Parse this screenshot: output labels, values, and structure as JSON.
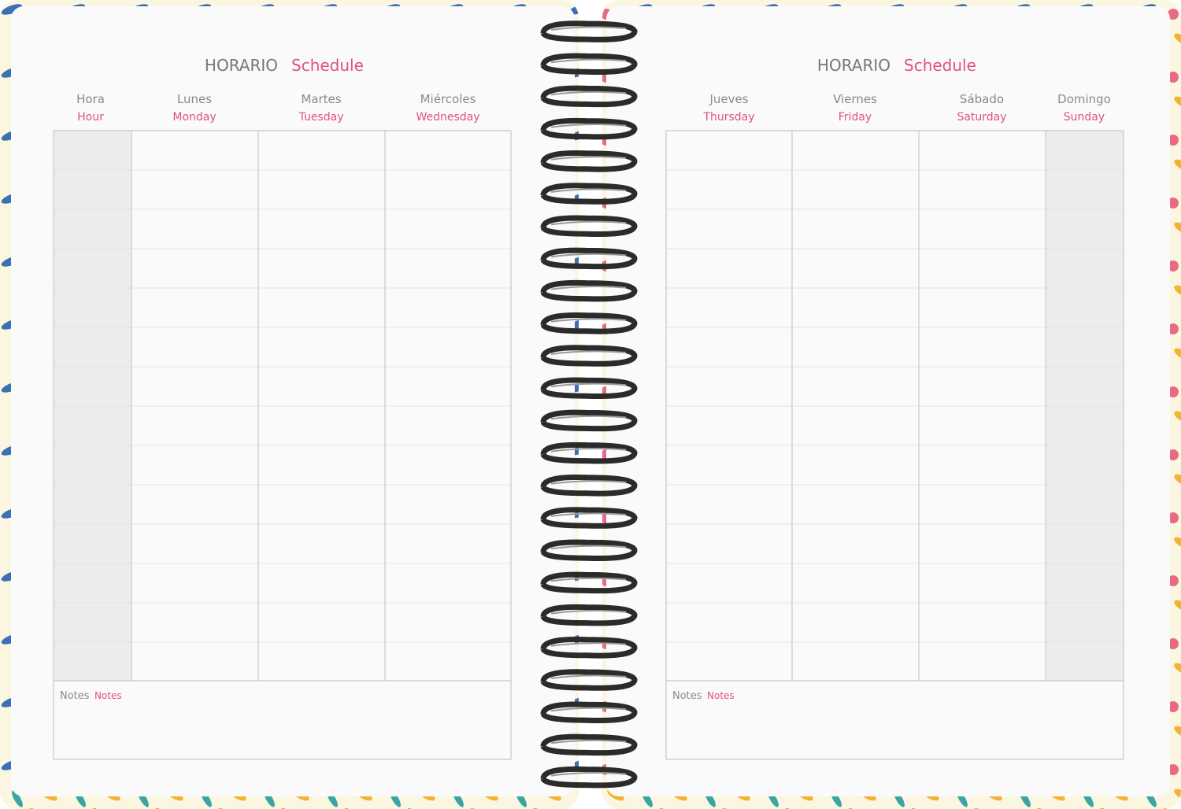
{
  "pages": [
    {
      "title": "HORARIO",
      "title_en": "Schedule",
      "columns": [
        {
          "label": "Hora",
          "label_en": "Hour"
        },
        {
          "label": "Lunes",
          "label_en": "Monday"
        },
        {
          "label": "Martes",
          "label_en": "Tuesday"
        },
        {
          "label": "Miércoles",
          "label_en": "Wednesday"
        }
      ],
      "notes": {
        "label": "Notes",
        "label_en": "Notes"
      }
    },
    {
      "title": "HORARIO",
      "title_en": "Schedule",
      "columns": [
        {
          "label": "Jueves",
          "label_en": "Thursday"
        },
        {
          "label": "Viernes",
          "label_en": "Friday"
        },
        {
          "label": "Sábado",
          "label_en": "Saturday"
        },
        {
          "label": "Domingo",
          "label_en": "Sunday"
        }
      ],
      "notes": {
        "label": "Notes",
        "label_en": "Notes"
      }
    }
  ]
}
